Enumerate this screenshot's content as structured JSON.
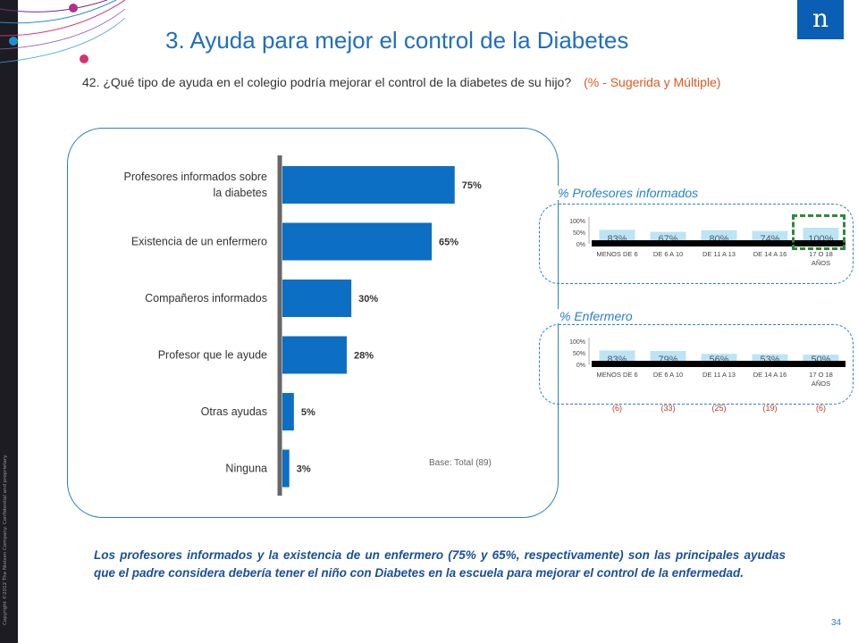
{
  "slide": {
    "title": "3. Ayuda para mejor el control de la Diabetes",
    "question": "42. ¿Qué tipo de ayuda en el colegio podría mejorar el control de la diabetes de su hijo?",
    "question_note": "(% - Sugerida y Múltiple)",
    "logo_text": "n",
    "copyright": "Copyright ©2012 The Nielsen Company. Confidential and proprietary.",
    "base": "Base: Total (89)",
    "conclusion": "Los profesores informados y la existencia de un enfermero (75% y 65%, respectivamente) son las principales ayudas que el padre considera debería tener el niño con Diabetes en la escuela para mejorar el control de la enfermedad.",
    "page_number": "34",
    "colors": {
      "accent": "#2a80c8",
      "bar": "#0d6fc4",
      "note": "#e0571e",
      "conclusion": "#1a4f9c",
      "small_bar": "#bde4f5",
      "highlight": "#2e8b3a",
      "count": "#c0392b"
    }
  },
  "chart_data": [
    {
      "type": "bar",
      "orientation": "horizontal",
      "categories": [
        "Profesores informados sobre la diabetes",
        "Existencia de un enfermero",
        "Compañeros informados",
        "Profesor que le ayude",
        "Otras ayudas",
        "Ninguna"
      ],
      "values": [
        75,
        65,
        30,
        28,
        5,
        3
      ],
      "data_labels": [
        "75%",
        "65%",
        "30%",
        "28%",
        "5%",
        "3%"
      ],
      "xlim": [
        0,
        100
      ],
      "grid": false
    },
    {
      "type": "bar",
      "title": "% Profesores informados",
      "categories": [
        "MENOS DE 6",
        "DE 6 A 10",
        "DE 11 A 13",
        "DE 14 A 16",
        "17 O 18 AÑOS"
      ],
      "values": [
        83,
        67,
        80,
        74,
        100
      ],
      "data_labels": [
        "83%",
        "67%",
        "80%",
        "74%",
        "100%"
      ],
      "yticks": [
        "100%",
        "50%",
        "0%"
      ],
      "ylim": [
        0,
        100
      ],
      "highlight": "17 O 18 AÑOS"
    },
    {
      "type": "bar",
      "title": "% Enfermero",
      "categories": [
        "MENOS DE 6",
        "DE 6 A 10",
        "DE 11 A 13",
        "DE 14 A 16",
        "17 O 18 AÑOS"
      ],
      "values": [
        83,
        79,
        56,
        53,
        50
      ],
      "data_labels": [
        "83%",
        "79%",
        "56%",
        "53%",
        "50%"
      ],
      "yticks": [
        "100%",
        "50%",
        "0%"
      ],
      "ylim": [
        0,
        100
      ],
      "sample_sizes": [
        "(6)",
        "(33)",
        "(25)",
        "(19)",
        "(6)"
      ]
    }
  ]
}
